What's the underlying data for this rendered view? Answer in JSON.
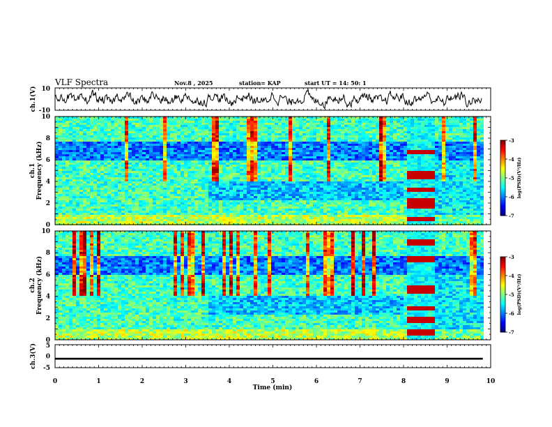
{
  "header": {
    "title": "VLF Spectra",
    "date": "Nov.8  , 2025",
    "station": "station= KAP",
    "start": "start  UT  =   14: 50: 1"
  },
  "chart_data": [
    {
      "type": "line",
      "panel": "ch1-waveform",
      "ylabel": "ch.1(V)",
      "ylim": [
        -10,
        10
      ],
      "yticklabels": [
        "10",
        "-10"
      ],
      "xlim": [
        0,
        10
      ],
      "note": "waveform oscillating roughly between -6 and 6 V"
    },
    {
      "type": "heatmap",
      "panel": "ch1-spectrogram",
      "ylabel": "ch.1 Frequency (kHz)",
      "ylim": [
        0,
        10
      ],
      "yticks": [
        0,
        2,
        4,
        6,
        8,
        10
      ],
      "xlim": [
        0,
        10
      ],
      "colorbar": {
        "label": "log(PSD)(V²/Hz)",
        "range": [
          -7,
          -3
        ],
        "ticks": [
          "-3",
          "-4",
          "-5",
          "-6",
          "-7"
        ]
      },
      "features": {
        "blue_band_khz": [
          6.0,
          7.6
        ],
        "burst_interval_min": [
          8.1,
          8.7
        ],
        "burst_lines_khz": [
          0.6,
          1.8,
          2.3,
          3.3,
          4.5,
          4.8,
          6.7
        ]
      }
    },
    {
      "type": "heatmap",
      "panel": "ch2-spectrogram",
      "ylabel": "ch.2 Frequency (kHz)",
      "ylim": [
        0,
        10
      ],
      "yticks": [
        0,
        2,
        4,
        6,
        8,
        10
      ],
      "xlim": [
        0,
        10
      ],
      "colorbar": {
        "label": "log(PSD)(V²/Hz)",
        "range": [
          -7,
          -3
        ],
        "ticks": [
          "-3",
          "-4",
          "-5",
          "-6",
          "-7"
        ]
      },
      "features": {
        "blue_band_khz": [
          6.0,
          7.6
        ],
        "burst_interval_min": [
          8.1,
          8.7
        ],
        "burst_lines_khz": [
          0.7,
          1.8,
          2.9,
          4.4,
          4.8,
          7.4,
          8.9
        ]
      }
    },
    {
      "type": "line",
      "panel": "ch3-waveform",
      "ylabel": "ch.3(V)",
      "ylim": [
        -5,
        5
      ],
      "yticklabels": [
        "5",
        "0",
        "-5"
      ],
      "xlim": [
        0,
        10
      ],
      "xlabel": "Time  (min)",
      "xticklabels": [
        "0",
        "1",
        "2",
        "3",
        "4",
        "5",
        "6",
        "7",
        "8",
        "9",
        "10"
      ],
      "note": "constant level near -1 V"
    }
  ]
}
